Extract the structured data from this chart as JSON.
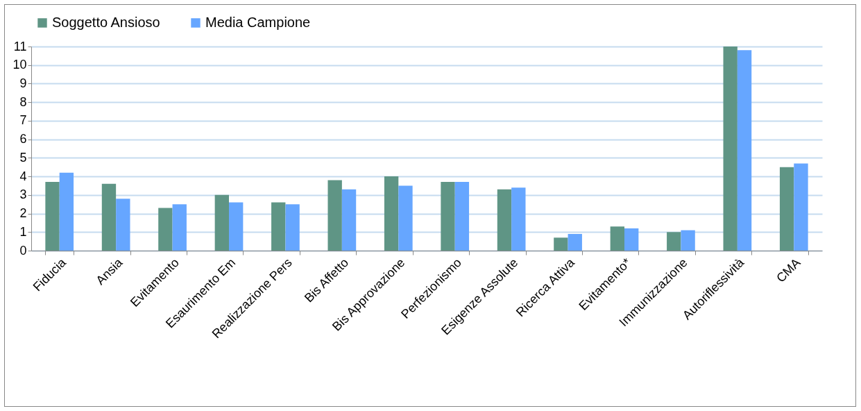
{
  "chart_data": {
    "type": "bar",
    "categories": [
      "Fiducia",
      "Ansia",
      "Evitamento",
      "Esaurimento Em",
      "Realizzazione  Pers",
      "Bis Affetto",
      "Bis Approvazione",
      "Perfezionismo",
      "Esigenze Assolute",
      "Ricerca Attiva",
      "Evitamento*",
      "Immunizzazione",
      "Autoriflessività",
      "CMA"
    ],
    "series": [
      {
        "name": "Soggetto Ansioso",
        "color": "#5f9585",
        "values": [
          3.7,
          3.6,
          2.3,
          3.0,
          2.6,
          3.8,
          4.0,
          3.7,
          3.3,
          0.7,
          1.3,
          1.0,
          11.0,
          4.5
        ]
      },
      {
        "name": "Media Campione",
        "color": "#66a6ff",
        "values": [
          4.2,
          2.8,
          2.5,
          2.6,
          2.5,
          3.3,
          3.5,
          3.7,
          3.4,
          0.9,
          1.2,
          1.1,
          10.8,
          4.7
        ]
      }
    ],
    "ylim": [
      0,
      11
    ],
    "yticks": [
      0,
      1,
      2,
      3,
      4,
      5,
      6,
      7,
      8,
      9,
      10,
      11
    ],
    "grid": "y",
    "legend": "top"
  }
}
